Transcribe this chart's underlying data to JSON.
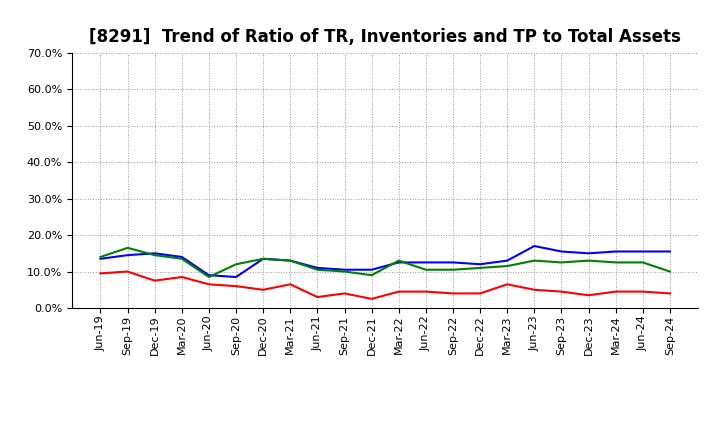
{
  "title": "[8291]  Trend of Ratio of TR, Inventories and TP to Total Assets",
  "x_labels": [
    "Jun-19",
    "Sep-19",
    "Dec-19",
    "Mar-20",
    "Jun-20",
    "Sep-20",
    "Dec-20",
    "Mar-21",
    "Jun-21",
    "Sep-21",
    "Dec-21",
    "Mar-22",
    "Jun-22",
    "Sep-22",
    "Dec-22",
    "Mar-23",
    "Jun-23",
    "Sep-23",
    "Dec-23",
    "Mar-24",
    "Jun-24",
    "Sep-24"
  ],
  "trade_receivables": [
    9.5,
    10.0,
    7.5,
    8.5,
    6.5,
    6.0,
    5.0,
    6.5,
    3.0,
    4.0,
    2.5,
    4.5,
    4.5,
    4.0,
    4.0,
    6.5,
    5.0,
    4.5,
    3.5,
    4.5,
    4.5,
    4.0
  ],
  "inventories": [
    13.5,
    14.5,
    15.0,
    14.0,
    9.0,
    8.5,
    13.5,
    13.0,
    11.0,
    10.5,
    10.5,
    12.5,
    12.5,
    12.5,
    12.0,
    13.0,
    17.0,
    15.5,
    15.0,
    15.5,
    15.5,
    15.5
  ],
  "trade_payables": [
    14.0,
    16.5,
    14.5,
    13.5,
    8.5,
    12.0,
    13.5,
    13.0,
    10.5,
    10.0,
    9.0,
    13.0,
    10.5,
    10.5,
    11.0,
    11.5,
    13.0,
    12.5,
    13.0,
    12.5,
    12.5,
    10.0
  ],
  "tr_color": "#ff0000",
  "inv_color": "#0000ff",
  "tp_color": "#008000",
  "ylim": [
    0,
    70
  ],
  "yticks": [
    0,
    10,
    20,
    30,
    40,
    50,
    60,
    70
  ],
  "background_color": "#ffffff",
  "plot_bg_color": "#ffffff",
  "grid_color": "#999999",
  "title_fontsize": 12,
  "legend_fontsize": 9,
  "tick_fontsize": 8
}
